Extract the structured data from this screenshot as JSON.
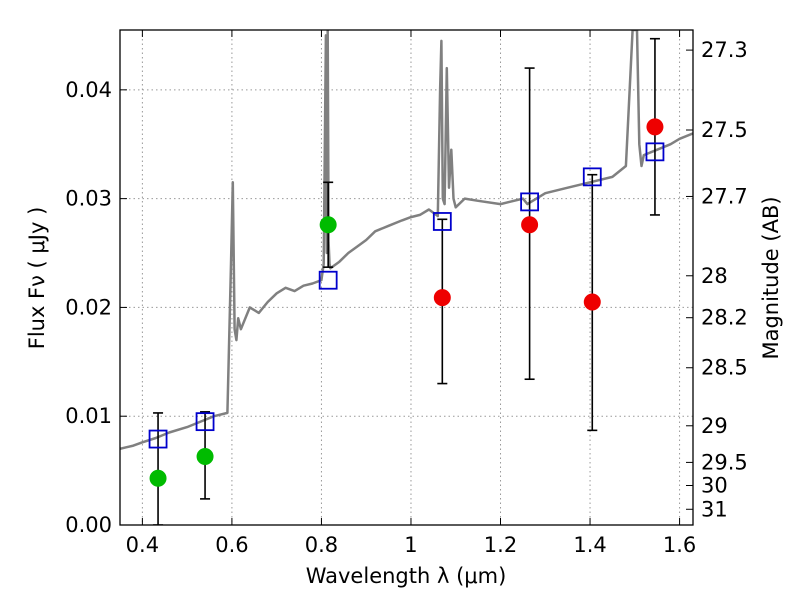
{
  "chart_data": {
    "type": "scatter",
    "xlabel": "Wavelength  λ (μm)",
    "ylabel": "Flux  Fν  ( μJy )",
    "y2label": "Magnitude (AB)",
    "xlim": [
      0.35,
      1.63
    ],
    "ylim": [
      0.0,
      0.0455
    ],
    "grid": true,
    "x_ticks": [
      0.4,
      0.6,
      0.8,
      1.0,
      1.2,
      1.4,
      1.6
    ],
    "x_tick_labels": [
      "0.4",
      "0.6",
      "0.8",
      "1",
      "1.2",
      "1.4",
      "1.6"
    ],
    "y_ticks": [
      0.0,
      0.01,
      0.02,
      0.03,
      0.04
    ],
    "y_tick_labels": [
      "0.00",
      "0.01",
      "0.02",
      "0.03",
      "0.04"
    ],
    "y2_tick_labels": [
      "27.3",
      "27.5",
      "27.7",
      "28",
      "28.2",
      "28.5",
      "29",
      "29.5",
      "30",
      "31"
    ],
    "colors": {
      "spectrum": "#808080",
      "model_squares": "#0000cc",
      "detections": "#00bb00",
      "non_detections": "#ee0000",
      "errorbars": "#000000",
      "grid": "#999999"
    },
    "spectrum": {
      "x": [
        0.35,
        0.38,
        0.4,
        0.43,
        0.46,
        0.5,
        0.53,
        0.56,
        0.59,
        0.598,
        0.602,
        0.606,
        0.61,
        0.614,
        0.62,
        0.64,
        0.66,
        0.68,
        0.7,
        0.72,
        0.74,
        0.76,
        0.78,
        0.8,
        0.805,
        0.81,
        0.812,
        0.814,
        0.816,
        0.818,
        0.82,
        0.84,
        0.86,
        0.88,
        0.9,
        0.92,
        0.95,
        0.98,
        1.0,
        1.02,
        1.04,
        1.06,
        1.065,
        1.068,
        1.071,
        1.075,
        1.08,
        1.085,
        1.09,
        1.095,
        1.1,
        1.12,
        1.15,
        1.2,
        1.25,
        1.26,
        1.3,
        1.35,
        1.4,
        1.45,
        1.48,
        1.495,
        1.5,
        1.505,
        1.51,
        1.515,
        1.52,
        1.55,
        1.58,
        1.6,
        1.63
      ],
      "y": [
        0.007,
        0.0073,
        0.0076,
        0.008,
        0.0085,
        0.009,
        0.0095,
        0.01,
        0.0103,
        0.024,
        0.0315,
        0.018,
        0.017,
        0.019,
        0.018,
        0.02,
        0.0195,
        0.0205,
        0.0213,
        0.0218,
        0.0215,
        0.022,
        0.0222,
        0.0225,
        0.024,
        0.045,
        0.025,
        0.0455,
        0.026,
        0.024,
        0.0236,
        0.0242,
        0.025,
        0.0256,
        0.0262,
        0.027,
        0.0275,
        0.028,
        0.0283,
        0.0285,
        0.029,
        0.0284,
        0.04,
        0.0445,
        0.03,
        0.0295,
        0.042,
        0.031,
        0.0345,
        0.03,
        0.0292,
        0.03,
        0.0298,
        0.0295,
        0.03,
        0.0295,
        0.0305,
        0.031,
        0.0315,
        0.032,
        0.033,
        0.0455,
        0.0455,
        0.0455,
        0.035,
        0.033,
        0.034,
        0.0345,
        0.035,
        0.0355,
        0.036
      ]
    },
    "series": [
      {
        "marker": "square",
        "x": [
          0.435,
          0.54,
          0.815,
          1.07,
          1.265,
          1.405,
          1.545
        ],
        "y": [
          0.0079,
          0.0095,
          0.0225,
          0.0279,
          0.0297,
          0.032,
          0.0343
        ]
      },
      {
        "marker": "circle",
        "x": [
          0.435,
          0.54,
          0.815
        ],
        "y": [
          0.0043,
          0.0063,
          0.0276
        ],
        "yerr_low": [
          0.0,
          0.0024,
          0.0237
        ],
        "yerr_high": [
          0.0103,
          0.0104,
          0.0315
        ]
      },
      {
        "marker": "circle",
        "x": [
          1.07,
          1.265,
          1.405,
          1.545
        ],
        "y": [
          0.0209,
          0.0276,
          0.0205,
          0.0366
        ],
        "yerr_low": [
          0.013,
          0.0134,
          0.0087,
          0.0285
        ],
        "yerr_high": [
          0.0281,
          0.042,
          0.0322,
          0.0447
        ]
      }
    ]
  }
}
